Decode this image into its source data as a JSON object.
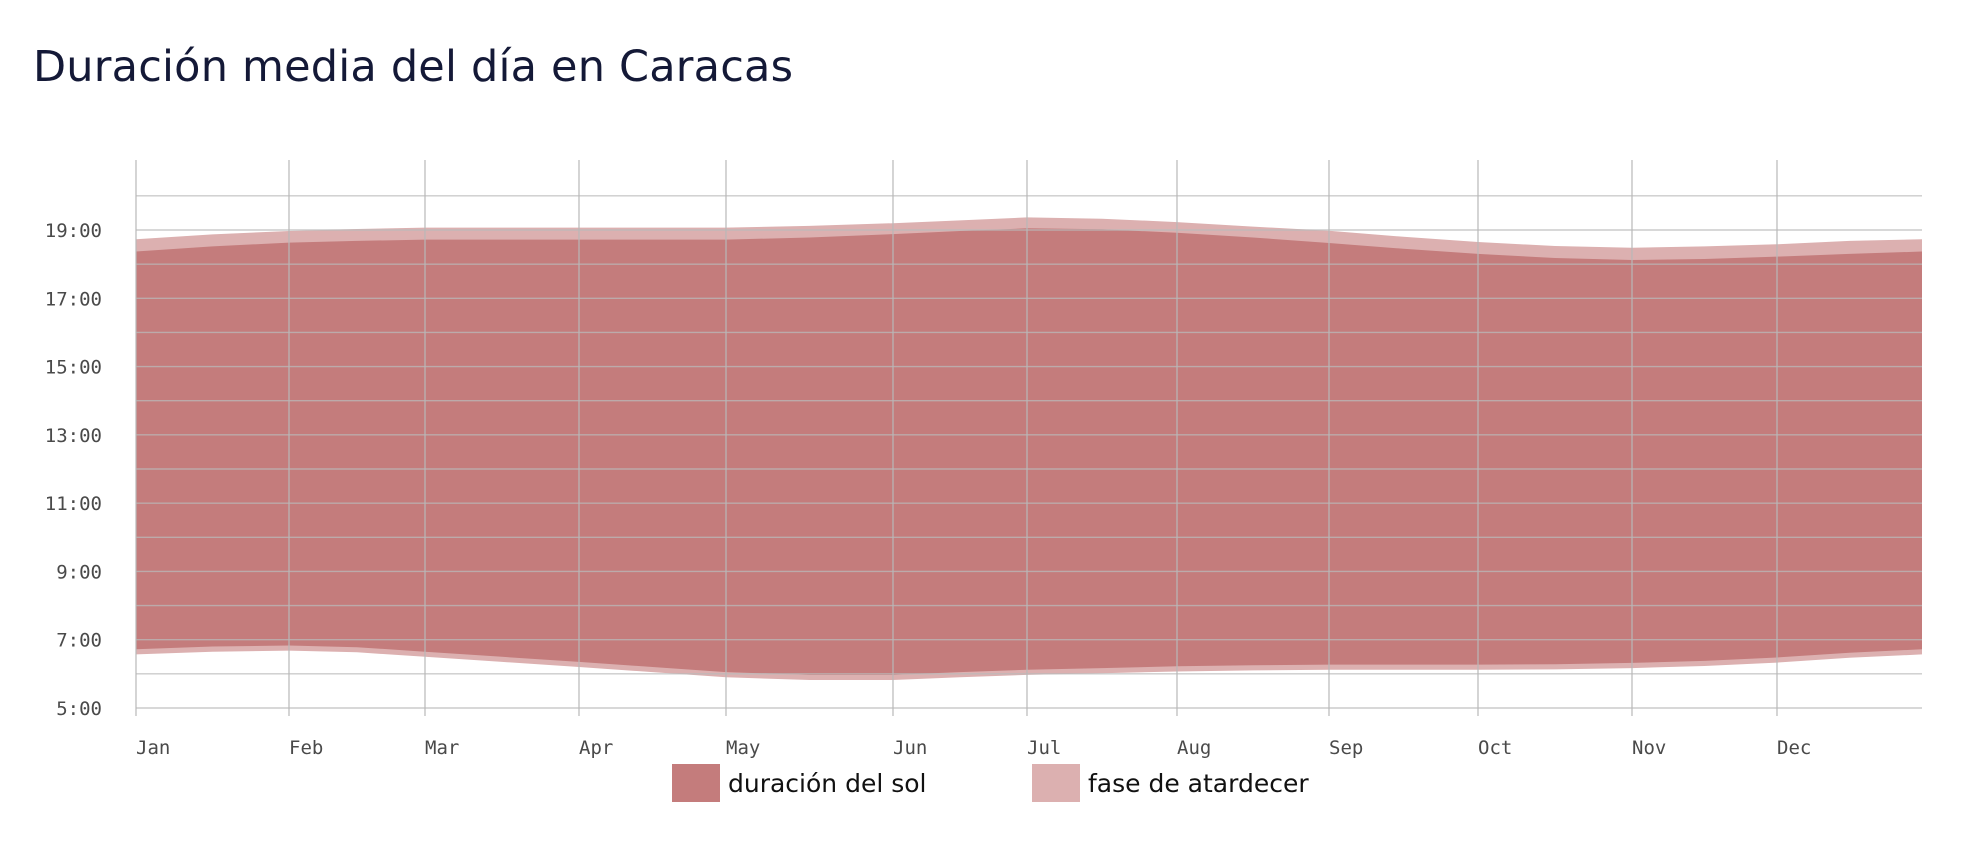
{
  "title": "Duración media del día en Caracas",
  "colors": {
    "daylight": "#c47c7c",
    "twilight": "#dcb0b0",
    "grid": "#b9b9b9",
    "minor_grid": "#a66a6a"
  },
  "legend": [
    {
      "label": "duración del sol",
      "color": "#c47c7c"
    },
    {
      "label": "fase de atardecer",
      "color": "#dcb0b0"
    }
  ],
  "chart_data": {
    "type": "area",
    "title": "Duración media del día en Caracas",
    "xlabel": "",
    "ylabel": "",
    "x_tick_labels": [
      "Jan",
      "Feb",
      "Mar",
      "Apr",
      "May",
      "Jun",
      "Jul",
      "Aug",
      "Sep",
      "Oct",
      "Nov",
      "Dec"
    ],
    "y_tick_labels": [
      "19:00",
      "17:00",
      "15:00",
      "13:00",
      "11:00",
      "9:00",
      "7:00",
      "5:00"
    ],
    "y_tick_values": [
      19,
      17,
      15,
      13,
      11,
      9,
      7,
      5
    ],
    "ylim": [
      5,
      20
    ],
    "xlim": [
      1,
      13
    ],
    "grid": true,
    "legend_position": "bottom-center",
    "x": [
      1,
      1.5,
      2,
      2.5,
      3,
      3.5,
      4,
      4.5,
      5,
      5.5,
      6,
      6.5,
      7,
      7.5,
      8,
      8.5,
      9,
      9.5,
      10,
      10.5,
      11,
      11.5,
      12,
      12.5,
      13
    ],
    "series": [
      {
        "name": "fase de atardecer",
        "role": "twilight_end",
        "values": [
          18.73,
          18.87,
          18.97,
          19.03,
          19.07,
          19.07,
          19.07,
          19.07,
          19.07,
          19.12,
          19.2,
          19.28,
          19.37,
          19.33,
          19.23,
          19.1,
          18.98,
          18.8,
          18.65,
          18.53,
          18.48,
          18.52,
          18.58,
          18.68,
          18.73
        ]
      },
      {
        "name": "duración del sol",
        "role": "sunset",
        "values": [
          18.37,
          18.52,
          18.63,
          18.68,
          18.72,
          18.72,
          18.72,
          18.72,
          18.72,
          18.78,
          18.88,
          18.97,
          19.05,
          19.02,
          18.92,
          18.78,
          18.62,
          18.45,
          18.3,
          18.18,
          18.12,
          18.15,
          18.22,
          18.3,
          18.37
        ]
      },
      {
        "name": "duración del sol",
        "role": "sunrise",
        "values": [
          6.72,
          6.8,
          6.83,
          6.78,
          6.65,
          6.5,
          6.35,
          6.2,
          6.05,
          5.97,
          5.97,
          6.05,
          6.12,
          6.17,
          6.22,
          6.25,
          6.27,
          6.27,
          6.27,
          6.28,
          6.32,
          6.38,
          6.48,
          6.62,
          6.72
        ]
      },
      {
        "name": "fase de atardecer",
        "role": "twilight_start",
        "values": [
          6.57,
          6.65,
          6.68,
          6.63,
          6.5,
          6.35,
          6.2,
          6.05,
          5.9,
          5.82,
          5.82,
          5.9,
          5.97,
          6.02,
          6.07,
          6.1,
          6.12,
          6.12,
          6.12,
          6.13,
          6.17,
          6.23,
          6.33,
          6.47,
          6.57
        ]
      }
    ]
  }
}
